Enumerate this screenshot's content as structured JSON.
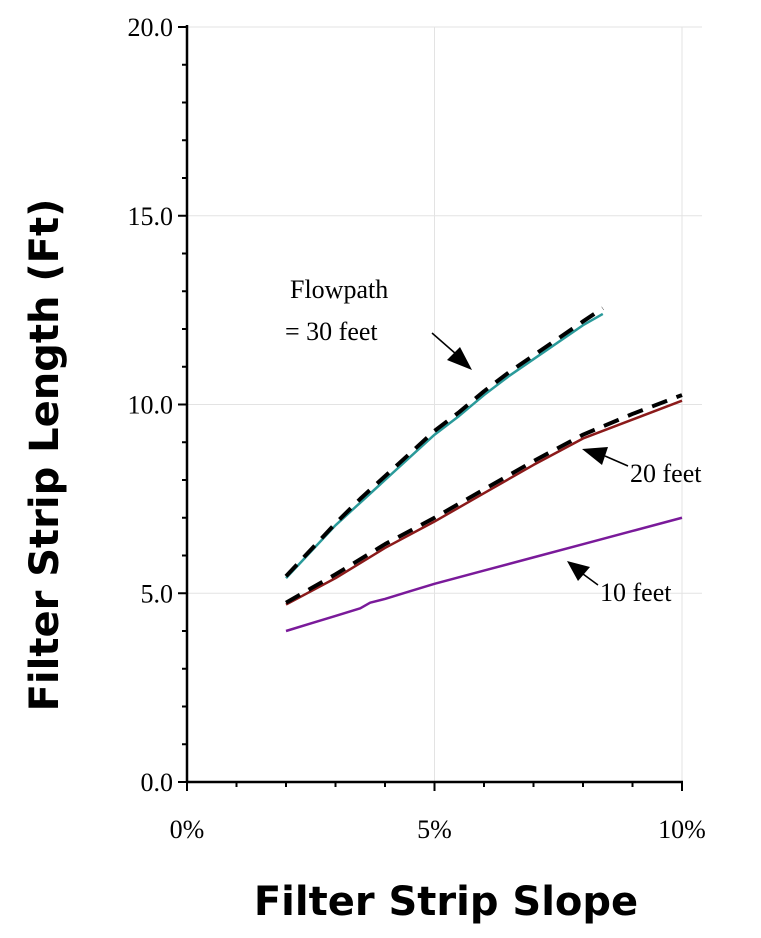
{
  "chart_data": {
    "type": "line",
    "xlabel": "Filter Strip Slope",
    "ylabel": "Filter Strip Length (Ft)",
    "xlim": [
      0,
      10
    ],
    "ylim": [
      0,
      20
    ],
    "xticks": [
      {
        "value": 0,
        "label": "0%"
      },
      {
        "value": 5,
        "label": "5%"
      },
      {
        "value": 10,
        "label": "10%"
      }
    ],
    "yticks": [
      {
        "value": 0,
        "label": "0.0"
      },
      {
        "value": 5,
        "label": "5.0"
      },
      {
        "value": 10,
        "label": "10.0"
      },
      {
        "value": 15,
        "label": "15.0"
      },
      {
        "value": 20,
        "label": "20.0"
      }
    ],
    "grid": true,
    "series": [
      {
        "color": "#2a9a9a",
        "style": "solid",
        "x": [
          2.0,
          2.5,
          3.0,
          3.5,
          4.0,
          4.5,
          5.0,
          5.5,
          6.0,
          6.5,
          7.0,
          7.5,
          8.0,
          8.4
        ],
        "y": [
          5.4,
          6.1,
          6.8,
          7.4,
          8.0,
          8.6,
          9.2,
          9.7,
          10.25,
          10.75,
          11.2,
          11.65,
          12.1,
          12.4
        ]
      },
      {
        "color": "#000000",
        "style": "dashed",
        "x": [
          2.0,
          2.5,
          3.0,
          3.5,
          4.0,
          4.5,
          5.0,
          5.5,
          6.0,
          6.5,
          7.0,
          7.5,
          8.0,
          8.4
        ],
        "y": [
          5.45,
          6.15,
          6.85,
          7.5,
          8.1,
          8.7,
          9.3,
          9.8,
          10.35,
          10.85,
          11.3,
          11.75,
          12.2,
          12.55
        ]
      },
      {
        "color": "#8b1a1a",
        "style": "solid",
        "x": [
          2.0,
          3.0,
          4.0,
          5.0,
          6.0,
          7.0,
          8.0,
          9.0,
          10.0
        ],
        "y": [
          4.7,
          5.4,
          6.2,
          6.9,
          7.65,
          8.4,
          9.1,
          9.6,
          10.1
        ]
      },
      {
        "color": "#000000",
        "style": "dashed",
        "x": [
          2.0,
          3.0,
          4.0,
          5.0,
          6.0,
          7.0,
          8.0,
          9.0,
          10.0
        ],
        "y": [
          4.75,
          5.5,
          6.3,
          7.0,
          7.75,
          8.5,
          9.2,
          9.75,
          10.25
        ]
      },
      {
        "color": "#7a1a9a",
        "style": "solid",
        "x": [
          2.0,
          2.5,
          3.0,
          3.5,
          3.7,
          4.0,
          4.5,
          5.0,
          6.0,
          7.0,
          8.0,
          9.0,
          10.0
        ],
        "y": [
          4.0,
          4.2,
          4.4,
          4.6,
          4.75,
          4.85,
          5.05,
          5.25,
          5.6,
          5.95,
          6.3,
          6.65,
          7.0
        ]
      }
    ],
    "annotations": [
      {
        "id": "flowpath-line1",
        "text": "Flowpath"
      },
      {
        "id": "flowpath-line2",
        "text": "=  30 feet"
      },
      {
        "id": "label-20",
        "text": "20 feet"
      },
      {
        "id": "label-10",
        "text": "10 feet"
      }
    ]
  }
}
